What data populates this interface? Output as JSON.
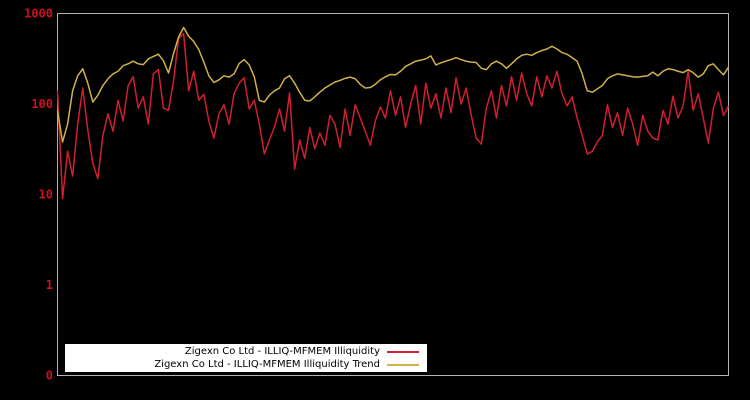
{
  "chart_data": {
    "type": "line",
    "title": "",
    "xlabel": "",
    "ylabel": "",
    "y_scale": "log",
    "ylim": [
      0.1,
      1000
    ],
    "y_tick_labels": [
      "1000",
      "100",
      "10",
      "1",
      "0"
    ],
    "x_tick_labels": [],
    "grid": false,
    "legend_position": "bottom-left-inside",
    "series": [
      {
        "name": "Zigexn Co Ltd - ILLIQ-MFMEM Illiquidity",
        "color": "#d02030",
        "values": [
          140,
          9,
          30,
          16,
          60,
          150,
          52,
          22,
          15,
          45,
          78,
          50,
          110,
          65,
          160,
          200,
          90,
          120,
          60,
          215,
          240,
          90,
          85,
          180,
          530,
          600,
          140,
          230,
          110,
          128,
          65,
          42,
          78,
          98,
          60,
          130,
          170,
          195,
          88,
          110,
          60,
          28,
          40,
          56,
          88,
          50,
          133,
          19,
          40,
          25,
          55,
          32,
          48,
          35,
          75,
          60,
          33,
          88,
          45,
          98,
          70,
          50,
          35,
          65,
          93,
          70,
          140,
          75,
          120,
          55,
          100,
          160,
          60,
          170,
          90,
          130,
          70,
          150,
          80,
          195,
          100,
          150,
          75,
          42,
          36,
          90,
          140,
          70,
          160,
          95,
          200,
          110,
          220,
          130,
          95,
          200,
          120,
          205,
          150,
          230,
          130,
          95,
          120,
          70,
          45,
          28,
          30,
          38,
          45,
          98,
          55,
          80,
          45,
          90,
          60,
          35,
          75,
          50,
          42,
          40,
          85,
          60,
          122,
          70,
          95,
          230,
          85,
          130,
          70,
          37,
          90,
          135,
          75,
          95
        ]
      },
      {
        "name": "Zigexn Co Ltd - ILLIQ-MFMEM Illiquidity Trend",
        "color": "#d2b04a",
        "values": [
          85,
          38,
          60,
          140,
          205,
          245,
          170,
          105,
          125,
          160,
          190,
          215,
          230,
          265,
          278,
          297,
          278,
          272,
          315,
          335,
          355,
          300,
          220,
          360,
          550,
          700,
          560,
          490,
          400,
          290,
          205,
          173,
          185,
          205,
          198,
          215,
          280,
          310,
          270,
          200,
          110,
          105,
          125,
          140,
          150,
          190,
          205,
          170,
          135,
          110,
          108,
          120,
          135,
          150,
          162,
          175,
          182,
          192,
          198,
          190,
          165,
          150,
          152,
          165,
          185,
          200,
          212,
          210,
          230,
          260,
          278,
          297,
          305,
          315,
          340,
          270,
          285,
          297,
          310,
          325,
          310,
          297,
          290,
          287,
          248,
          240,
          278,
          297,
          278,
          248,
          278,
          315,
          345,
          355,
          345,
          370,
          390,
          405,
          435,
          405,
          370,
          355,
          325,
          297,
          215,
          140,
          135,
          147,
          160,
          190,
          205,
          215,
          210,
          205,
          200,
          198,
          202,
          205,
          225,
          205,
          230,
          245,
          240,
          230,
          222,
          240,
          222,
          198,
          215,
          265,
          278,
          240,
          210,
          255
        ]
      }
    ],
    "colors": {
      "background": "#000000",
      "frame": "#b3b3b3",
      "tick_label": "#cc1020",
      "legend_background": "#ffffff",
      "legend_text": "#000000"
    }
  }
}
